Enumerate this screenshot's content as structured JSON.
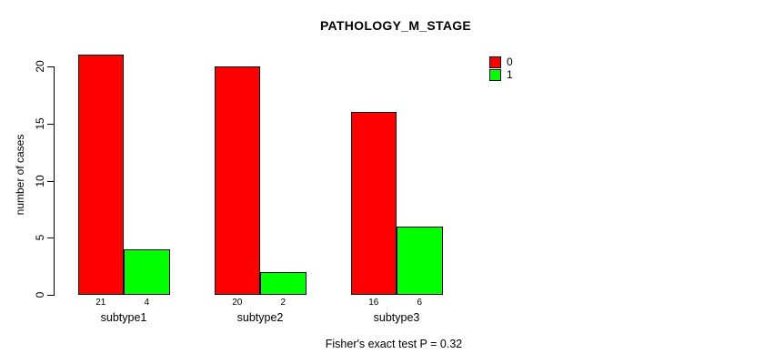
{
  "chart_data": {
    "type": "bar",
    "title": "PATHOLOGY_M_STAGE",
    "xlabel": "",
    "ylabel": "number of cases",
    "categories": [
      "subtype1",
      "subtype2",
      "subtype3"
    ],
    "series": [
      {
        "name": "0",
        "color": "#ff0000",
        "values": [
          21,
          20,
          16
        ]
      },
      {
        "name": "1",
        "color": "#00ff00",
        "values": [
          4,
          2,
          6
        ]
      }
    ],
    "bar_value_labels": [
      [
        21,
        4
      ],
      [
        20,
        2
      ],
      [
        16,
        6
      ]
    ],
    "yticks": [
      0,
      5,
      10,
      15,
      20
    ],
    "ylim": [
      0,
      21
    ],
    "grid": false,
    "legend_position": "top-right",
    "annotation": "Fisher's exact test P = 0.32",
    "colors": {
      "background": "#ffffff",
      "axis": "#000000",
      "text": "#000000",
      "bar_border": "#000000"
    }
  }
}
